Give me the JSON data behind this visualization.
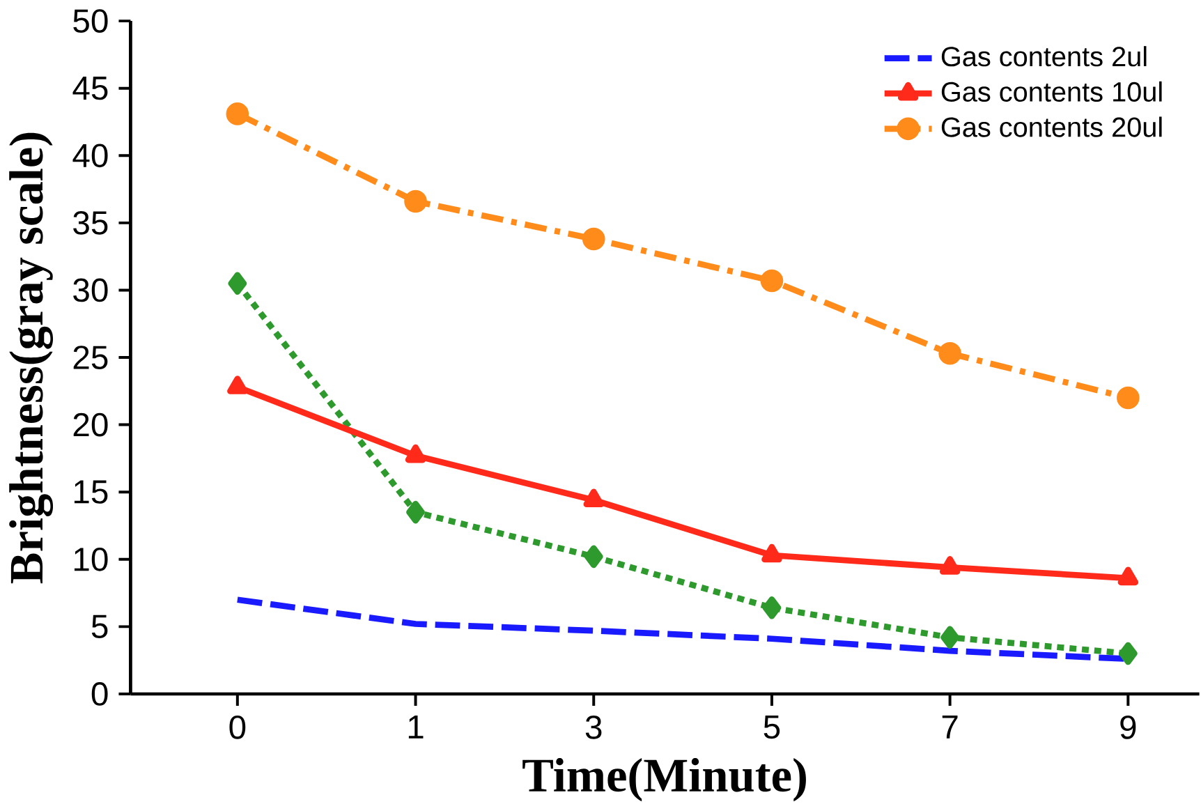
{
  "chart_data": {
    "type": "line",
    "xlabel": "Time(Minute)",
    "ylabel": "Brightness(gray scale)",
    "categories": [
      "0",
      "1",
      "3",
      "5",
      "7",
      "9"
    ],
    "ylim": [
      0,
      50
    ],
    "yticks": [
      0,
      5,
      10,
      15,
      20,
      25,
      30,
      35,
      40,
      45,
      50
    ],
    "grid": false,
    "legend": "top right",
    "series": [
      {
        "color": "#2e9a2e",
        "values": [
          30.5,
          13.5,
          10.2,
          6.4,
          4.2,
          3.0
        ],
        "marker": "diamond",
        "line_style": "dotted"
      },
      {
        "name": "Gas contents 2ul",
        "color": "#1a1aff",
        "values": [
          7.0,
          5.2,
          4.7,
          4.1,
          3.2,
          2.6
        ],
        "marker": "none",
        "line_style": "dashed"
      },
      {
        "name": "Gas contents 10ul",
        "color": "#ff2a1a",
        "values": [
          22.8,
          17.7,
          14.4,
          10.3,
          9.4,
          8.6
        ],
        "marker": "triangle",
        "line_style": "solid"
      },
      {
        "name": "Gas contents 20ul",
        "color": "#ff8c1a",
        "values": [
          43.1,
          36.6,
          33.8,
          30.7,
          25.3,
          22.0
        ],
        "marker": "circle",
        "line_style": "dashdot"
      }
    ]
  }
}
